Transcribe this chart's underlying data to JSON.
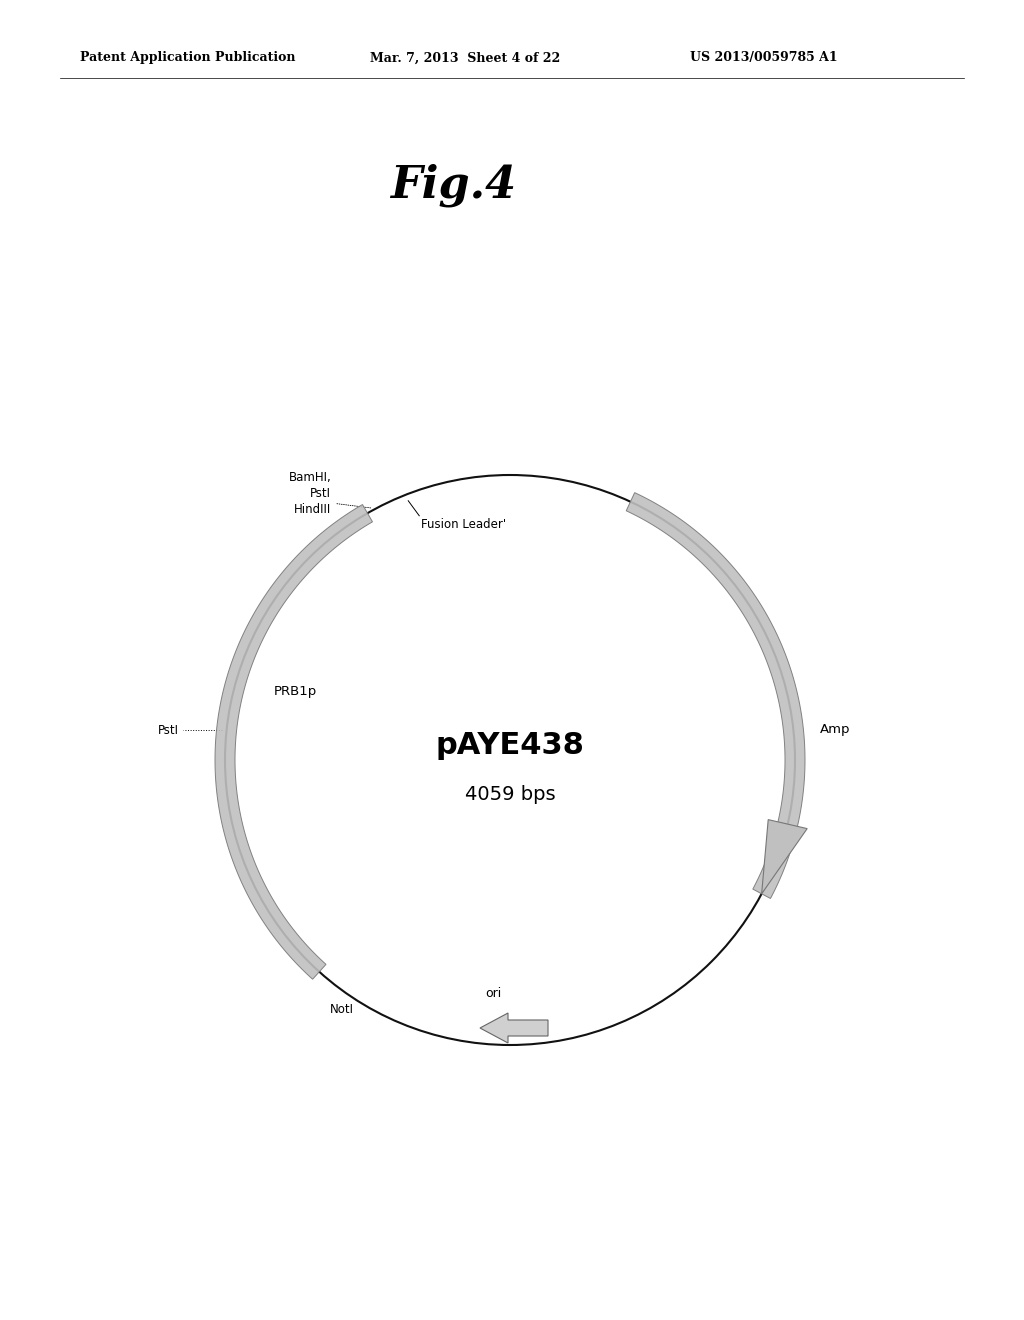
{
  "header_left": "Patent Application Publication",
  "header_mid": "Mar. 7, 2013  Sheet 4 of 22",
  "header_right": "US 2013/0059785 A1",
  "fig_label": "Fig.4",
  "plasmid_name": "pAYE438",
  "plasmid_size": "4059 bps",
  "bg_color": "#ffffff",
  "circle_color": "#111111",
  "arc_color": "#b0b0b0",
  "arc_edge_color": "#555555",
  "labels": {
    "BamHI_PstI_HindIII": "BamHI,\nPstI\nHindIII",
    "Fusion_Leader": "Fusion Leader'",
    "PstI": "PstI",
    "PRB1p": "PRB1p",
    "NotI": "NotI",
    "Amp": "Amp",
    "ori": "ori"
  }
}
